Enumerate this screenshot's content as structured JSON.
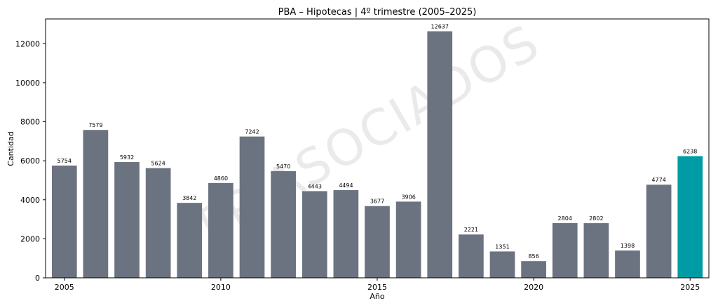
{
  "chart_data": {
    "type": "bar",
    "title": "PBA – Hipotecas | 4º trimestre (2005–2025)",
    "xlabel": "Año",
    "ylabel": "Cantidad",
    "x": [
      2005,
      2006,
      2007,
      2008,
      2009,
      2010,
      2011,
      2012,
      2013,
      2014,
      2015,
      2016,
      2017,
      2018,
      2019,
      2020,
      2021,
      2022,
      2023,
      2024,
      2025
    ],
    "values": [
      5754,
      7579,
      5932,
      5624,
      3842,
      4860,
      7242,
      5470,
      4443,
      4494,
      3677,
      3906,
      12637,
      2221,
      1351,
      856,
      2804,
      2802,
      1398,
      4774,
      6238
    ],
    "xticks": [
      2005,
      2010,
      2015,
      2020,
      2025
    ],
    "yticks": [
      0,
      2000,
      4000,
      6000,
      8000,
      10000,
      12000
    ],
    "ylim": [
      0,
      13269
    ],
    "xlim": [
      2004.4,
      2025.6
    ],
    "colors": {
      "default": "#6b7280",
      "highlight": "#009ca6"
    },
    "highlight_x": 2025,
    "grid": false,
    "legend": "none"
  },
  "watermark": "FP ASOCIADOS"
}
